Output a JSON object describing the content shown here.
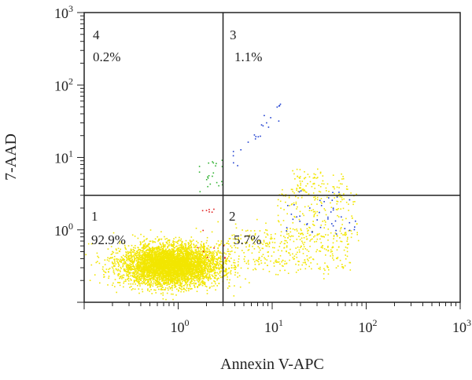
{
  "chart_data": {
    "type": "scatter",
    "title": "",
    "xlabel": "Annexin V-APC",
    "ylabel": "7-AAD",
    "xscale": "log",
    "yscale": "log",
    "xlim": [
      0.1,
      1000
    ],
    "ylim": [
      0.1,
      1000
    ],
    "x_ticks": [
      {
        "base": "10",
        "exp": "0"
      },
      {
        "base": "10",
        "exp": "1"
      },
      {
        "base": "10",
        "exp": "2"
      },
      {
        "base": "10",
        "exp": "3"
      }
    ],
    "y_ticks": [
      {
        "base": "10",
        "exp": "0"
      },
      {
        "base": "10",
        "exp": "1"
      },
      {
        "base": "10",
        "exp": "2"
      },
      {
        "base": "10",
        "exp": "3"
      }
    ],
    "gate": {
      "x": 3.0,
      "y": 3.0
    },
    "grid": false,
    "quadrants": [
      {
        "id": "4",
        "percent": "0.2%"
      },
      {
        "id": "3",
        "percent": "1.1%"
      },
      {
        "id": "1",
        "percent": "92.9%"
      },
      {
        "id": "2",
        "percent": "5.7%"
      }
    ],
    "colors": {
      "main": "#f2e600",
      "early_apoptotic": "#f2e600",
      "late": "#1f3fd0",
      "necrotic": "#33b233",
      "highlight": "#e02020"
    }
  }
}
